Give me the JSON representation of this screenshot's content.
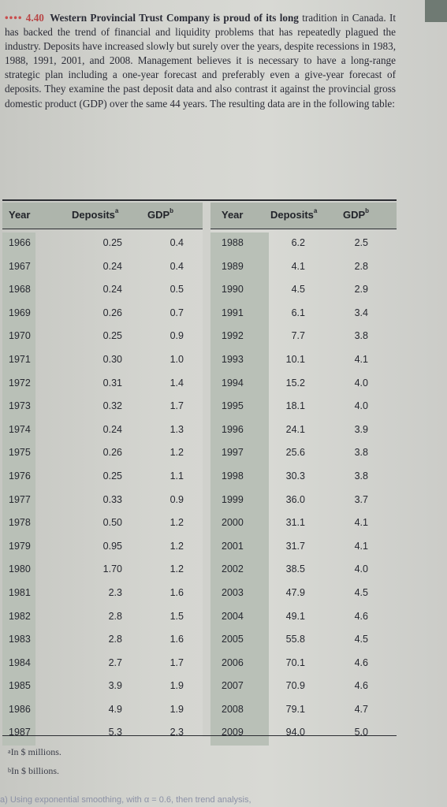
{
  "problem": {
    "number": "4.40",
    "lead": "Western Provincial Trust Company is proud of its long",
    "body": "tradition in Canada. It has backed the trend of financial and liquidity problems that has repeatedly plagued the industry. Deposits have increased slowly but surely over the years, despite recessions in 1983, 1988, 1991, 2001, and 2008. Management believes it is necessary to have a long-range strategic plan including a one-year forecast and preferably even a give-year forecast of deposits. They examine the past deposit data and also contrast it against the provincial gross domestic product (GDP) over the same 44 years. The resulting data are in the following table:"
  },
  "table": {
    "headers": {
      "year": "Year",
      "deposits": "Deposits",
      "deposits_mark": "a",
      "gdp": "GDP",
      "gdp_mark": "b"
    },
    "left_rows": [
      {
        "year": "1966",
        "deposits": "0.25",
        "gdp": "0.4"
      },
      {
        "year": "1967",
        "deposits": "0.24",
        "gdp": "0.4"
      },
      {
        "year": "1968",
        "deposits": "0.24",
        "gdp": "0.5"
      },
      {
        "year": "1969",
        "deposits": "0.26",
        "gdp": "0.7"
      },
      {
        "year": "1970",
        "deposits": "0.25",
        "gdp": "0.9"
      },
      {
        "year": "1971",
        "deposits": "0.30",
        "gdp": "1.0"
      },
      {
        "year": "1972",
        "deposits": "0.31",
        "gdp": "1.4"
      },
      {
        "year": "1973",
        "deposits": "0.32",
        "gdp": "1.7"
      },
      {
        "year": "1974",
        "deposits": "0.24",
        "gdp": "1.3"
      },
      {
        "year": "1975",
        "deposits": "0.26",
        "gdp": "1.2"
      },
      {
        "year": "1976",
        "deposits": "0.25",
        "gdp": "1.1"
      },
      {
        "year": "1977",
        "deposits": "0.33",
        "gdp": "0.9"
      },
      {
        "year": "1978",
        "deposits": "0.50",
        "gdp": "1.2"
      },
      {
        "year": "1979",
        "deposits": "0.95",
        "gdp": "1.2"
      },
      {
        "year": "1980",
        "deposits": "1.70",
        "gdp": "1.2"
      },
      {
        "year": "1981",
        "deposits": "2.3",
        "gdp": "1.6"
      },
      {
        "year": "1982",
        "deposits": "2.8",
        "gdp": "1.5"
      },
      {
        "year": "1983",
        "deposits": "2.8",
        "gdp": "1.6"
      },
      {
        "year": "1984",
        "deposits": "2.7",
        "gdp": "1.7"
      },
      {
        "year": "1985",
        "deposits": "3.9",
        "gdp": "1.9"
      },
      {
        "year": "1986",
        "deposits": "4.9",
        "gdp": "1.9"
      },
      {
        "year": "1987",
        "deposits": "5.3",
        "gdp": "2.3"
      }
    ],
    "right_rows": [
      {
        "year": "1988",
        "deposits": "6.2",
        "gdp": "2.5"
      },
      {
        "year": "1989",
        "deposits": "4.1",
        "gdp": "2.8"
      },
      {
        "year": "1990",
        "deposits": "4.5",
        "gdp": "2.9"
      },
      {
        "year": "1991",
        "deposits": "6.1",
        "gdp": "3.4"
      },
      {
        "year": "1992",
        "deposits": "7.7",
        "gdp": "3.8"
      },
      {
        "year": "1993",
        "deposits": "10.1",
        "gdp": "4.1"
      },
      {
        "year": "1994",
        "deposits": "15.2",
        "gdp": "4.0"
      },
      {
        "year": "1995",
        "deposits": "18.1",
        "gdp": "4.0"
      },
      {
        "year": "1996",
        "deposits": "24.1",
        "gdp": "3.9"
      },
      {
        "year": "1997",
        "deposits": "25.6",
        "gdp": "3.8"
      },
      {
        "year": "1998",
        "deposits": "30.3",
        "gdp": "3.8"
      },
      {
        "year": "1999",
        "deposits": "36.0",
        "gdp": "3.7"
      },
      {
        "year": "2000",
        "deposits": "31.1",
        "gdp": "4.1"
      },
      {
        "year": "2001",
        "deposits": "31.7",
        "gdp": "4.1"
      },
      {
        "year": "2002",
        "deposits": "38.5",
        "gdp": "4.0"
      },
      {
        "year": "2003",
        "deposits": "47.9",
        "gdp": "4.5"
      },
      {
        "year": "2004",
        "deposits": "49.1",
        "gdp": "4.6"
      },
      {
        "year": "2005",
        "deposits": "55.8",
        "gdp": "4.5"
      },
      {
        "year": "2006",
        "deposits": "70.1",
        "gdp": "4.6"
      },
      {
        "year": "2007",
        "deposits": "70.9",
        "gdp": "4.6"
      },
      {
        "year": "2008",
        "deposits": "79.1",
        "gdp": "4.7"
      },
      {
        "year": "2009",
        "deposits": "94.0",
        "gdp": "5.0"
      }
    ]
  },
  "footnotes": [
    {
      "mark": "a",
      "text": "In $ millions."
    },
    {
      "mark": "b",
      "text": "In $ billions."
    }
  ],
  "cutoff_text": "a) Using exponential smoothing, with α = 0.6, then trend analysis,",
  "colors": {
    "problem_number": "#b84646",
    "header_band": "#aeb5ac",
    "year_column_band": "#b9c0b7"
  }
}
